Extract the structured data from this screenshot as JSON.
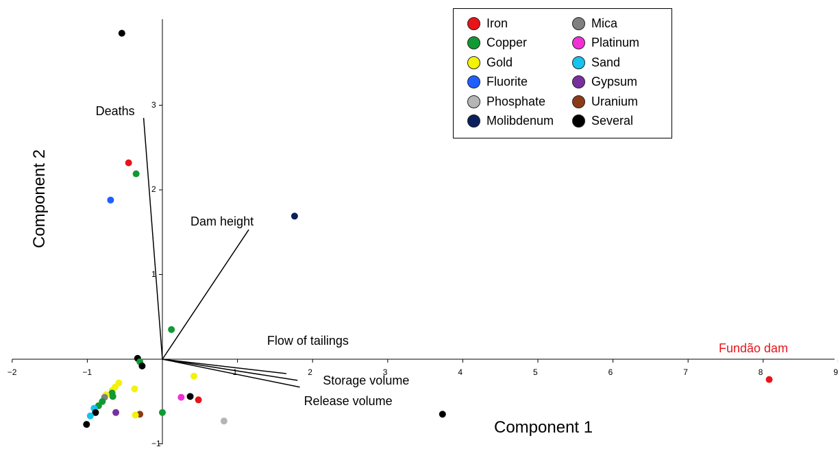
{
  "chart_data": {
    "type": "scatter",
    "xlabel": "Component 1",
    "ylabel": "Component 2",
    "xlim": [
      -2,
      9
    ],
    "ylim": [
      -1,
      4
    ],
    "x_ticks": [
      "−2",
      "−1",
      "1",
      "2",
      "3",
      "4",
      "5",
      "6",
      "7",
      "8",
      "9"
    ],
    "y_ticks": [
      "−1",
      "1",
      "2",
      "3"
    ],
    "legend": {
      "placement": "top-right",
      "entries": [
        {
          "name": "Iron",
          "color": "#e8141a"
        },
        {
          "name": "Copper",
          "color": "#119933"
        },
        {
          "name": "Gold",
          "color": "#f2f20a"
        },
        {
          "name": "Fluorite",
          "color": "#1f5fff"
        },
        {
          "name": "Phosphate",
          "color": "#b5b5b5"
        },
        {
          "name": "Molibdenum",
          "color": "#0b1f5c"
        },
        {
          "name": "Mica",
          "color": "#808080"
        },
        {
          "name": "Platinum",
          "color": "#f22ed8"
        },
        {
          "name": "Sand",
          "color": "#14c3f0"
        },
        {
          "name": "Gypsum",
          "color": "#7a2fa0"
        },
        {
          "name": "Uranium",
          "color": "#8a3c16"
        },
        {
          "name": "Several",
          "color": "#000000"
        }
      ]
    },
    "vectors": [
      {
        "label": "Deaths",
        "x": -0.25,
        "y": 2.85
      },
      {
        "label": "Dam height",
        "x": 1.15,
        "y": 1.53
      },
      {
        "label": "Flow of tailings",
        "x": 1.65,
        "y": -0.17
      },
      {
        "label": "Storage volume",
        "x": 1.8,
        "y": -0.25
      },
      {
        "label": "Release volume",
        "x": 1.83,
        "y": -0.33
      }
    ],
    "annotation": {
      "text": "Fundão dam",
      "color": "#e8141a"
    },
    "points": [
      {
        "x": -0.54,
        "y": 3.85,
        "group": "Several"
      },
      {
        "x": -0.45,
        "y": 2.32,
        "group": "Iron"
      },
      {
        "x": -0.35,
        "y": 2.19,
        "group": "Copper"
      },
      {
        "x": -0.69,
        "y": 1.88,
        "group": "Fluorite"
      },
      {
        "x": 1.76,
        "y": 1.69,
        "group": "Molibdenum"
      },
      {
        "x": 0.12,
        "y": 0.35,
        "group": "Copper"
      },
      {
        "x": -0.33,
        "y": 0.01,
        "group": "Several"
      },
      {
        "x": -0.3,
        "y": -0.03,
        "group": "Copper"
      },
      {
        "x": -0.27,
        "y": -0.08,
        "group": "Several"
      },
      {
        "x": 0.42,
        "y": -0.2,
        "group": "Gold"
      },
      {
        "x": 8.08,
        "y": -0.24,
        "group": "Iron"
      },
      {
        "x": -0.58,
        "y": -0.28,
        "group": "Gold"
      },
      {
        "x": -0.63,
        "y": -0.33,
        "group": "Gold"
      },
      {
        "x": -0.37,
        "y": -0.35,
        "group": "Gold"
      },
      {
        "x": -0.67,
        "y": -0.37,
        "group": "Gold"
      },
      {
        "x": -0.67,
        "y": -0.4,
        "group": "Copper"
      },
      {
        "x": -0.75,
        "y": -0.42,
        "group": "Gold"
      },
      {
        "x": -0.66,
        "y": -0.44,
        "group": "Copper"
      },
      {
        "x": -0.77,
        "y": -0.45,
        "group": "Mica"
      },
      {
        "x": 0.37,
        "y": -0.44,
        "group": "Several"
      },
      {
        "x": 0.25,
        "y": -0.45,
        "group": "Platinum"
      },
      {
        "x": 0.48,
        "y": -0.48,
        "group": "Iron"
      },
      {
        "x": -0.8,
        "y": -0.5,
        "group": "Copper"
      },
      {
        "x": -0.85,
        "y": -0.55,
        "group": "Copper"
      },
      {
        "x": -0.91,
        "y": -0.58,
        "group": "Sand"
      },
      {
        "x": -0.62,
        "y": -0.63,
        "group": "Gypsum"
      },
      {
        "x": -0.89,
        "y": -0.63,
        "group": "Several"
      },
      {
        "x": 0.0,
        "y": -0.63,
        "group": "Copper"
      },
      {
        "x": -0.3,
        "y": -0.65,
        "group": "Uranium"
      },
      {
        "x": -0.36,
        "y": -0.66,
        "group": "Gold"
      },
      {
        "x": -0.96,
        "y": -0.67,
        "group": "Sand"
      },
      {
        "x": 3.73,
        "y": -0.65,
        "group": "Several"
      },
      {
        "x": 0.82,
        "y": -0.73,
        "group": "Phosphate"
      },
      {
        "x": -1.01,
        "y": -0.77,
        "group": "Several"
      }
    ]
  }
}
